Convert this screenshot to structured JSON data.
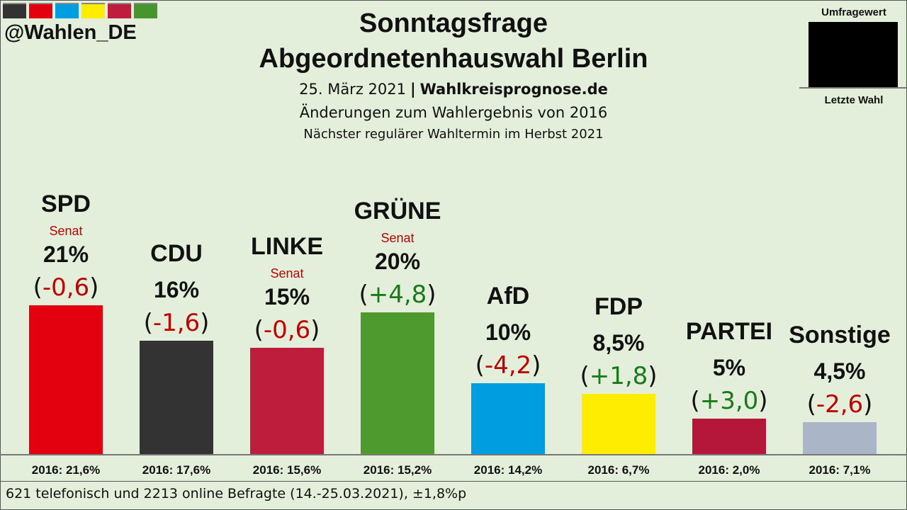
{
  "header": {
    "handle": "@Wahlen_DE",
    "title_line1": "Sonntagsfrage",
    "title_line2": "Abgeordnetenhauswahl Berlin",
    "date": "25. März 2021",
    "separator": "|",
    "site": "Wahlkreisprognose.de",
    "subtitle1": "Änderungen zum Wahlergebnis von 2016",
    "subtitle2": "Nächster regulärer Wahltermin im Herbst 2021",
    "color_strip": [
      "#333333",
      "#e3000f",
      "#009ee0",
      "#ffed00",
      "#be1e3c",
      "#46962b"
    ]
  },
  "legend": {
    "top_label": "Umfragewert",
    "bottom_label": "Letzte Wahl"
  },
  "chart_data": {
    "type": "bar",
    "title": "Sonntagsfrage Abgeordnetenhauswahl Berlin",
    "xlabel": "",
    "ylabel": "",
    "ylim": [
      0,
      25
    ],
    "categories": [
      "SPD",
      "CDU",
      "LINKE",
      "GRÜNE",
      "AfD",
      "FDP",
      "PARTEI",
      "Sonstige"
    ],
    "values": [
      21,
      16,
      15,
      20,
      10,
      8.5,
      5,
      4.5
    ],
    "value_labels": [
      "21%",
      "16%",
      "15%",
      "20%",
      "10%",
      "8,5%",
      "5%",
      "4,5%"
    ],
    "changes": [
      "(-0,6)",
      "(-1,6)",
      "(-0,6)",
      "(+4,8)",
      "(-4,2)",
      "(+1,8)",
      "(+3,0)",
      "(-2,6)"
    ],
    "senat": [
      "Senat",
      "",
      "Senat",
      "Senat",
      "",
      "",
      "",
      ""
    ],
    "previous_labels": [
      "2016: 21,6%",
      "2016: 17,6%",
      "2016: 15,6%",
      "2016: 15,2%",
      "2016: 14,2%",
      "2016: 6,7%",
      "2016: 2,0%",
      "2016: 7,1%"
    ],
    "previous_values": [
      21.6,
      17.6,
      15.6,
      15.2,
      14.2,
      6.7,
      2.0,
      7.1
    ],
    "colors": [
      "#e3000f",
      "#333333",
      "#be1e3c",
      "#4f9a2e",
      "#009ee0",
      "#ffed00",
      "#b5173a",
      "#aab6c8"
    ],
    "change_colors": {
      "positive": "#1a7a1a",
      "negative": "#c00000"
    }
  },
  "footer": {
    "note": "621 telefonisch und 2213 online Befragte (14.-25.03.2021), ±1,8%p"
  }
}
